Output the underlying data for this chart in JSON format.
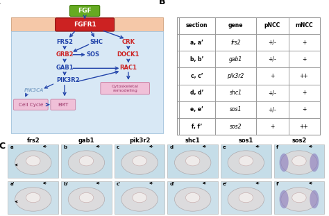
{
  "panel_A_label": "A",
  "panel_B_label": "B",
  "panel_C_label": "C",
  "table_headers": [
    "section",
    "gene",
    "pNCC",
    "mNCC"
  ],
  "table_rows": [
    [
      "a, a’",
      "frs2",
      "+/-",
      "+"
    ],
    [
      "b, b’",
      "gab1",
      "+/-",
      "+"
    ],
    [
      "c, c’",
      "pik3r2",
      "+",
      "++"
    ],
    [
      "d, d’",
      "shc1",
      "+/-",
      "+"
    ],
    [
      "e, e’",
      "sos1",
      "+/-",
      "+"
    ],
    [
      "f, f’",
      "sos2",
      "+",
      "++"
    ]
  ],
  "fgf_label": "FGF",
  "fgfr1_label": "FGFR1",
  "membrane_color": "#f5c8a8",
  "pathway_bg": "#d8e8f5",
  "red_color": "#cc2222",
  "blue_dark": "#2244aa",
  "green_fgf": "#66aa22",
  "box_pink": "#f0c0d8",
  "pik3ca_color": "#88aacc",
  "table_border": "#999999",
  "table_bg": "#f5f5f5",
  "img_bg": "#c5dde8",
  "img_bg2": "#cce0ea",
  "section_labels": [
    "frs2",
    "gab1",
    "pik3r2",
    "shc1",
    "sos1",
    "sos2"
  ],
  "row1_ids": [
    "a",
    "b",
    "c",
    "d",
    "e",
    "f"
  ],
  "row2_ids": [
    "a'",
    "b'",
    "c'",
    "d'",
    "e'",
    "f'"
  ]
}
